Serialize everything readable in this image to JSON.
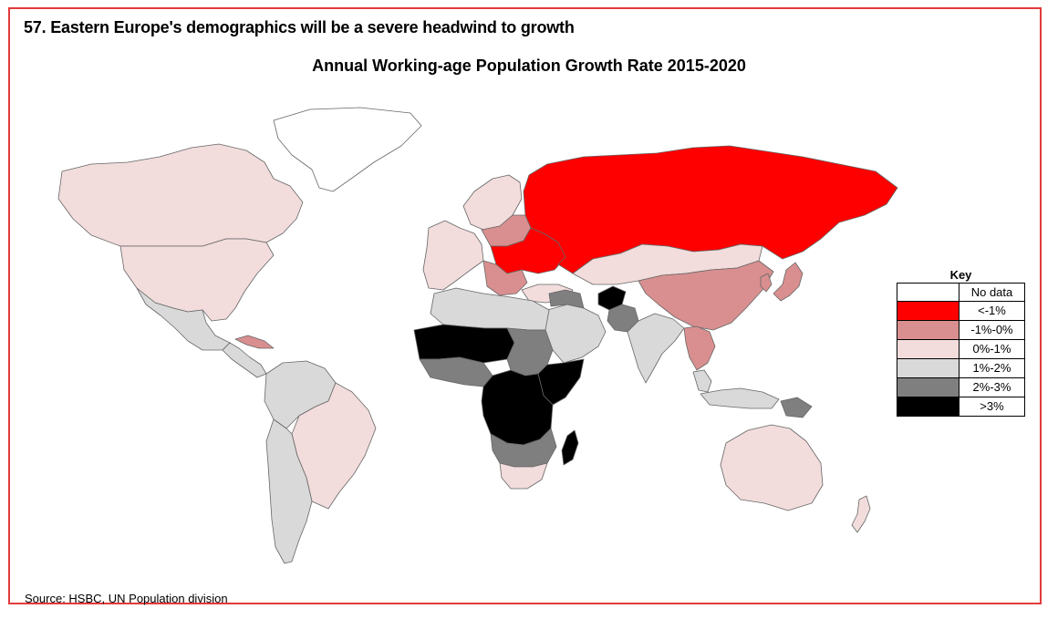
{
  "header_title": "57. Eastern Europe's demographics will be a severe headwind to growth",
  "map_title": "Annual Working-age Population Growth Rate 2015-2020",
  "source": "Source: HSBC, UN Population division",
  "key": {
    "title": "Key",
    "items": [
      {
        "label": "No data",
        "color": "#ffffff"
      },
      {
        "label": "<-1%",
        "color": "#ff0000"
      },
      {
        "label": "-1%-0%",
        "color": "#d98f8f"
      },
      {
        "label": "0%-1%",
        "color": "#f2dcdc"
      },
      {
        "label": "1%-2%",
        "color": "#d9d9d9"
      },
      {
        "label": "2%-3%",
        "color": "#7f7f7f"
      },
      {
        "label": ">3%",
        "color": "#000000"
      }
    ]
  },
  "regions": [
    {
      "name": "greenland",
      "cls": 0
    },
    {
      "name": "canada",
      "cls": 3
    },
    {
      "name": "usa",
      "cls": 3
    },
    {
      "name": "mexico",
      "cls": 4
    },
    {
      "name": "central-america",
      "cls": 4
    },
    {
      "name": "cuba",
      "cls": 2
    },
    {
      "name": "south-america-north",
      "cls": 4
    },
    {
      "name": "brazil",
      "cls": 3
    },
    {
      "name": "southern-cone",
      "cls": 4
    },
    {
      "name": "western-europe",
      "cls": 3
    },
    {
      "name": "scandinavia",
      "cls": 3
    },
    {
      "name": "baltics-poland",
      "cls": 2
    },
    {
      "name": "eastern-europe",
      "cls": 1
    },
    {
      "name": "balkans",
      "cls": 2
    },
    {
      "name": "russia",
      "cls": 1
    },
    {
      "name": "kazakhstan-mongolia",
      "cls": 3
    },
    {
      "name": "china",
      "cls": 2
    },
    {
      "name": "japan",
      "cls": 2
    },
    {
      "name": "korea",
      "cls": 2
    },
    {
      "name": "turkey",
      "cls": 3
    },
    {
      "name": "middle-east",
      "cls": 4
    },
    {
      "name": "iraq-syria",
      "cls": 5
    },
    {
      "name": "afghanistan",
      "cls": 6
    },
    {
      "name": "pakistan",
      "cls": 5
    },
    {
      "name": "india",
      "cls": 4
    },
    {
      "name": "indochina",
      "cls": 2
    },
    {
      "name": "southeast-asia",
      "cls": 4
    },
    {
      "name": "indonesia",
      "cls": 4
    },
    {
      "name": "papua",
      "cls": 5
    },
    {
      "name": "australia",
      "cls": 3
    },
    {
      "name": "new-zealand",
      "cls": 3
    },
    {
      "name": "north-africa",
      "cls": 4
    },
    {
      "name": "sahel",
      "cls": 6
    },
    {
      "name": "west-africa",
      "cls": 5
    },
    {
      "name": "east-africa",
      "cls": 5
    },
    {
      "name": "horn-of-africa",
      "cls": 6
    },
    {
      "name": "central-africa",
      "cls": 6
    },
    {
      "name": "southern-africa",
      "cls": 5
    },
    {
      "name": "south-africa",
      "cls": 3
    },
    {
      "name": "madagascar",
      "cls": 6
    }
  ]
}
